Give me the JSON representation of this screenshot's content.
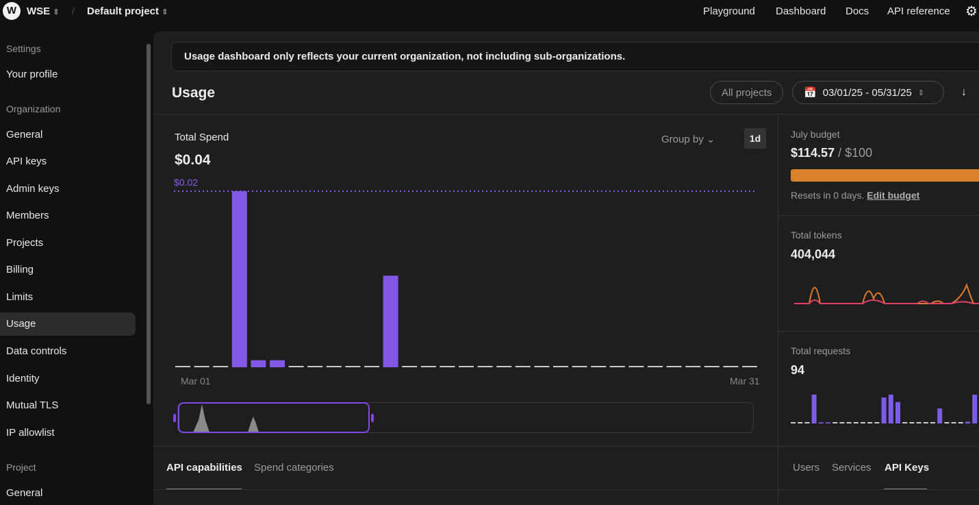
{
  "topbar": {
    "org_initial": "W",
    "org": "WSE",
    "separator": "/",
    "project": "Default project",
    "links": [
      "Playground",
      "Dashboard",
      "Docs",
      "API reference"
    ]
  },
  "sidebar": {
    "sections": [
      {
        "title": "Settings",
        "items": [
          "Your profile"
        ]
      },
      {
        "title": "Organization",
        "items": [
          "General",
          "API keys",
          "Admin keys",
          "Members",
          "Projects",
          "Billing",
          "Limits",
          "Usage",
          "Data controls",
          "Identity",
          "Mutual TLS",
          "IP allowlist"
        ]
      },
      {
        "title": "Project",
        "items": [
          "General"
        ]
      }
    ],
    "active": "Usage"
  },
  "banner": "Usage dashboard only reflects your current organization, not including sub-organizations.",
  "header": {
    "title": "Usage",
    "projects_filter": "All projects",
    "date_range": "03/01/25 - 05/31/25"
  },
  "spend": {
    "label": "Total Spend",
    "total": "$0.04",
    "group_by": "Group by",
    "interval": "1d"
  },
  "budget": {
    "label": "July budget",
    "spent": "$114.57",
    "separator": " / ",
    "limit": "$100",
    "progress": 1.0,
    "reset_text": "Resets in 0 days.",
    "edit_link": "Edit budget",
    "color": "#d9822b"
  },
  "tokens": {
    "label": "Total tokens",
    "value": "404,044"
  },
  "requests": {
    "label": "Total requests",
    "value": "94",
    "values": [
      0,
      0,
      0,
      5,
      0.2,
      0.2,
      0,
      0,
      0,
      0,
      0,
      0,
      0,
      4.5,
      5,
      3.7,
      0,
      0,
      0,
      0,
      0,
      2.6,
      0,
      0,
      0,
      0.3,
      5,
      5.7,
      0
    ]
  },
  "tabs_left": [
    "API capabilities",
    "Spend categories"
  ],
  "tabs_right": [
    "Users",
    "Services",
    "API Keys"
  ],
  "chart_data": {
    "type": "bar",
    "title": "Total Spend",
    "x_labels": [
      "Mar 01",
      "Mar 31"
    ],
    "reference_line_label": "$0.02",
    "reference_value": 0.02,
    "categories": [
      "Mar 01",
      "Mar 02",
      "Mar 03",
      "Mar 04",
      "Mar 05",
      "Mar 06",
      "Mar 07",
      "Mar 08",
      "Mar 09",
      "Mar 10",
      "Mar 11",
      "Mar 12",
      "Mar 13",
      "Mar 14",
      "Mar 15",
      "Mar 16",
      "Mar 17",
      "Mar 18",
      "Mar 19",
      "Mar 20",
      "Mar 21",
      "Mar 22",
      "Mar 23",
      "Mar 24",
      "Mar 25",
      "Mar 26",
      "Mar 27",
      "Mar 28",
      "Mar 29",
      "Mar 30",
      "Mar 31"
    ],
    "values": [
      0,
      0,
      0,
      0.02,
      0.0008,
      0.0008,
      0,
      0,
      0,
      0,
      0,
      0.0104,
      0,
      0,
      0,
      0,
      0,
      0,
      0,
      0,
      0,
      0,
      0,
      0,
      0,
      0,
      0,
      0,
      0,
      0,
      0
    ],
    "ylim": [
      0,
      0.02
    ],
    "color": "#8257e5"
  }
}
